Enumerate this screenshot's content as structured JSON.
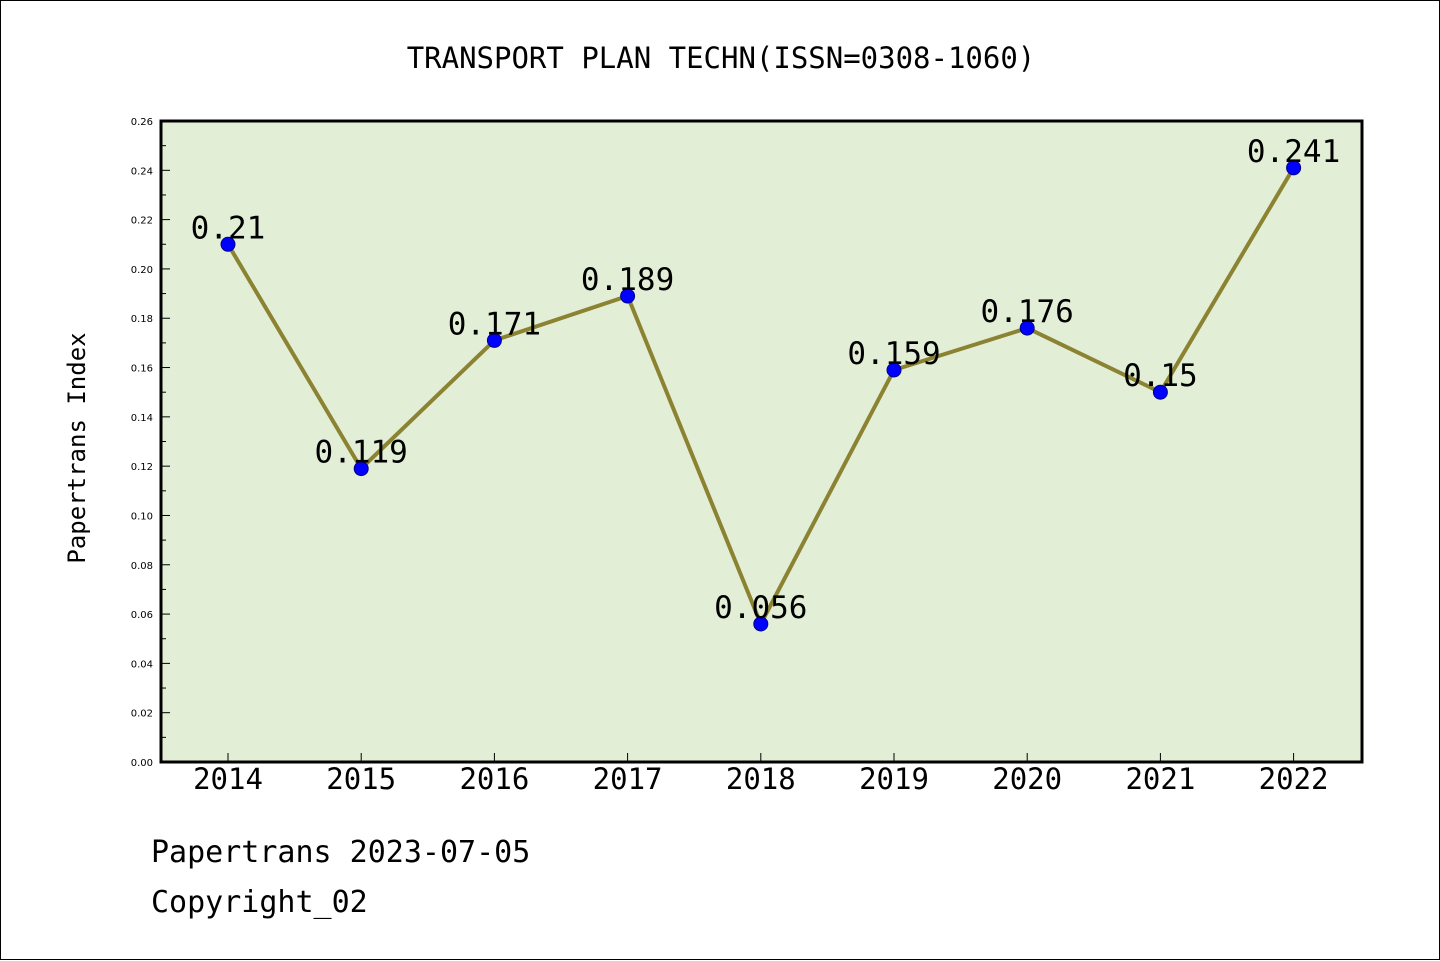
{
  "chart_data": {
    "type": "line",
    "title": "TRANSPORT PLAN TECHN(ISSN=0308-1060)",
    "xlabel": "",
    "ylabel": "Papertrans Index",
    "categories": [
      "2014",
      "2015",
      "2016",
      "2017",
      "2018",
      "2019",
      "2020",
      "2021",
      "2022"
    ],
    "series": [
      {
        "values": [
          0.21,
          0.119,
          0.171,
          0.189,
          0.056,
          0.159,
          0.176,
          0.15,
          0.241
        ],
        "labels": [
          "0.21",
          "0.119",
          "0.171",
          "0.189",
          "0.056",
          "0.159",
          "0.176",
          "0.15",
          "0.241"
        ]
      }
    ],
    "ylim": [
      0,
      0.26
    ],
    "yticks": [
      "0.00",
      "0.02",
      "0.04",
      "0.06",
      "0.08",
      "0.10",
      "0.12",
      "0.14",
      "0.16",
      "0.18",
      "0.20",
      "0.22",
      "0.24",
      "0.26"
    ],
    "grid": false,
    "legend": "none",
    "colors": {
      "plot_background": "#e2efd6",
      "line": "#8b8232",
      "marker": "#0000ff"
    }
  },
  "footer": {
    "line1": "Papertrans 2023-07-05",
    "line2": "Copyright_02"
  }
}
